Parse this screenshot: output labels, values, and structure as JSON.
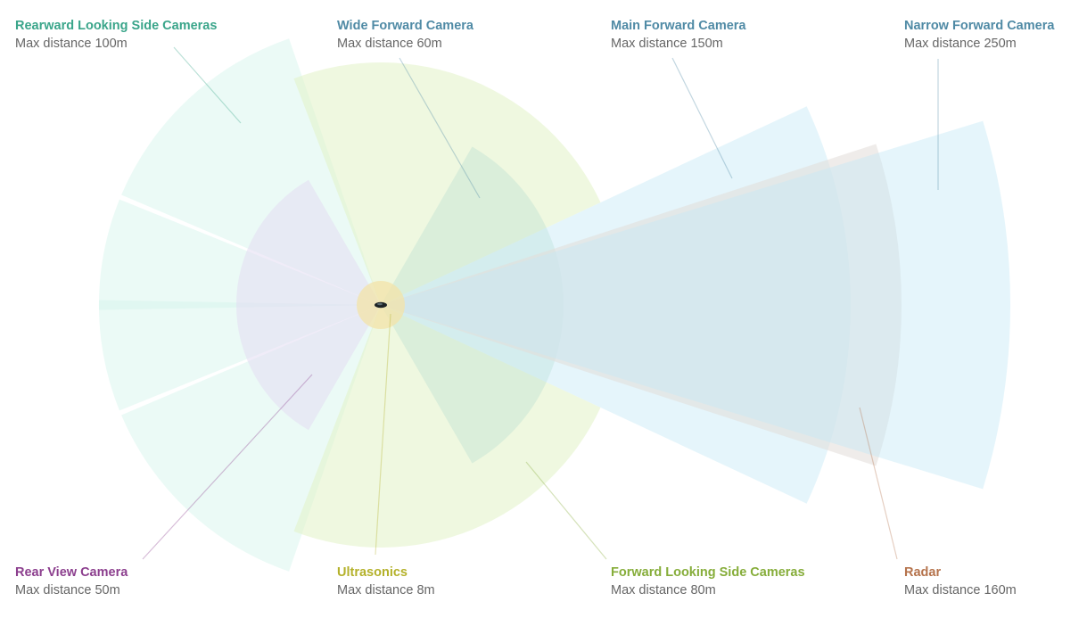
{
  "sensors": [
    {
      "id": "rearward-side",
      "name": "Rearward Looking Side Cameras",
      "distance_text": "Max distance 100m",
      "range_m": 100,
      "color": "#3aa58a",
      "fill": "#d2f5ec"
    },
    {
      "id": "wide-forward",
      "name": "Wide Forward Camera",
      "distance_text": "Max distance 60m",
      "range_m": 60,
      "color": "#4f8aa5",
      "fill": "#c9e6d6"
    },
    {
      "id": "main-forward",
      "name": "Main Forward Camera",
      "distance_text": "Max distance 150m",
      "range_m": 150,
      "color": "#4f8aa5",
      "fill": "#c6e8f7"
    },
    {
      "id": "narrow-forward",
      "name": "Narrow Forward Camera",
      "distance_text": "Max distance 250m",
      "range_m": 250,
      "color": "#4f8aa5",
      "fill": "#c6e8f7"
    },
    {
      "id": "rear-view",
      "name": "Rear View Camera",
      "distance_text": "Max distance 50m",
      "range_m": 50,
      "color": "#8c3f8e",
      "fill": "#e4ddf3"
    },
    {
      "id": "ultrasonics",
      "name": "Ultrasonics",
      "distance_text": "Max distance 8m",
      "range_m": 8,
      "color": "#b4b12a",
      "fill": "#f3e3a8"
    },
    {
      "id": "forward-side",
      "name": "Forward Looking Side Cameras",
      "distance_text": "Max distance 80m",
      "range_m": 80,
      "color": "#86ad3a",
      "fill": "#e2f3c7"
    },
    {
      "id": "radar",
      "name": "Radar",
      "distance_text": "Max distance 160m",
      "range_m": 160,
      "color": "#b5734c",
      "fill": "#e2dcd8"
    }
  ]
}
